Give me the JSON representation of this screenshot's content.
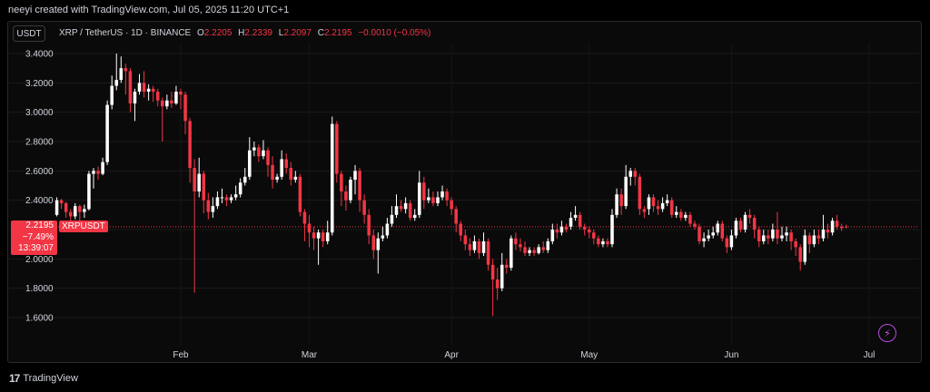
{
  "header": {
    "credit": "neeyi created with TradingView.com, Jul 05, 2025 11:20 UTC+1"
  },
  "toolbar": {
    "currency_button": "USDT"
  },
  "legend": {
    "symbol": "XRP / TetherUS · 1D · BINANCE",
    "o_label": "O",
    "o_value": "2.2205",
    "h_label": "H",
    "h_value": "2.2339",
    "l_label": "L",
    "l_value": "2.2097",
    "c_label": "C",
    "c_value": "2.2195",
    "change": "−0.0010 (−0.05%)"
  },
  "price_tag": {
    "price": "2.2195",
    "change_pct": "−7.49%",
    "countdown": "13:39:07",
    "symbol": "XRPUSDT"
  },
  "footer": {
    "logo_mark": "17",
    "brand": "TradingView"
  },
  "icons": {
    "flash": "lightning-icon"
  },
  "colors": {
    "up": "#ffffff",
    "down": "#f23645",
    "background": "#000000",
    "grid": "#1c1c1c"
  },
  "chart_data": {
    "type": "candlestick",
    "title": "",
    "xlabel": "",
    "ylabel": "",
    "ylim": [
      1.5,
      3.48
    ],
    "yticks": [
      "1.6000",
      "1.8000",
      "2.0000",
      "2.2000",
      "2.4000",
      "2.6000",
      "2.8000",
      "3.0000",
      "3.2000",
      "3.4000"
    ],
    "xticks": [
      {
        "label": "Feb",
        "date": "2025-02-01"
      },
      {
        "label": "Mar",
        "date": "2025-03-01"
      },
      {
        "label": "Apr",
        "date": "2025-04-01"
      },
      {
        "label": "May",
        "date": "2025-05-01"
      },
      {
        "label": "Jun",
        "date": "2025-06-01"
      },
      {
        "label": "Jul",
        "date": "2025-07-01"
      }
    ],
    "last_price": 2.2195,
    "start_date": "2025-01-05",
    "candles": [
      [
        2.3,
        2.4,
        2.42,
        2.29
      ],
      [
        2.4,
        2.38,
        2.41,
        2.34
      ],
      [
        2.38,
        2.32,
        2.39,
        2.28
      ],
      [
        2.32,
        2.29,
        2.34,
        2.26
      ],
      [
        2.29,
        2.36,
        2.38,
        2.27
      ],
      [
        2.36,
        2.32,
        2.37,
        2.2
      ],
      [
        2.32,
        2.34,
        2.37,
        2.28
      ],
      [
        2.34,
        2.58,
        2.6,
        2.33
      ],
      [
        2.58,
        2.6,
        2.62,
        2.48
      ],
      [
        2.6,
        2.58,
        2.63,
        2.54
      ],
      [
        2.58,
        2.66,
        2.69,
        2.57
      ],
      [
        2.66,
        3.05,
        3.08,
        2.64
      ],
      [
        3.05,
        3.18,
        3.25,
        3.02
      ],
      [
        3.18,
        3.22,
        3.4,
        3.15
      ],
      [
        3.22,
        3.3,
        3.38,
        3.2
      ],
      [
        3.3,
        3.28,
        3.33,
        3.12
      ],
      [
        3.28,
        3.06,
        3.3,
        3.0
      ],
      [
        3.06,
        3.14,
        3.16,
        2.94
      ],
      [
        3.14,
        3.2,
        3.26,
        3.12
      ],
      [
        3.2,
        3.14,
        3.28,
        3.1
      ],
      [
        3.14,
        3.16,
        3.19,
        3.08
      ],
      [
        3.16,
        3.14,
        3.18,
        3.07
      ],
      [
        3.14,
        3.08,
        3.16,
        3.04
      ],
      [
        3.08,
        3.04,
        3.1,
        2.8
      ],
      [
        3.04,
        3.08,
        3.12,
        3.02
      ],
      [
        3.08,
        3.06,
        3.14,
        3.03
      ],
      [
        3.06,
        3.14,
        3.18,
        3.05
      ],
      [
        3.14,
        3.12,
        3.16,
        3.02
      ],
      [
        3.12,
        2.94,
        3.14,
        2.85
      ],
      [
        2.94,
        2.62,
        2.96,
        2.52
      ],
      [
        2.62,
        2.46,
        2.68,
        1.77
      ],
      [
        2.46,
        2.58,
        2.69,
        2.42
      ],
      [
        2.58,
        2.4,
        2.6,
        2.31
      ],
      [
        2.4,
        2.32,
        2.45,
        2.27
      ],
      [
        2.32,
        2.36,
        2.42,
        2.28
      ],
      [
        2.36,
        2.42,
        2.46,
        2.34
      ],
      [
        2.42,
        2.42,
        2.48,
        2.38
      ],
      [
        2.42,
        2.4,
        2.44,
        2.36
      ],
      [
        2.4,
        2.42,
        2.44,
        2.38
      ],
      [
        2.42,
        2.44,
        2.5,
        2.4
      ],
      [
        2.44,
        2.52,
        2.55,
        2.42
      ],
      [
        2.52,
        2.56,
        2.62,
        2.5
      ],
      [
        2.56,
        2.74,
        2.83,
        2.54
      ],
      [
        2.74,
        2.76,
        2.8,
        2.7
      ],
      [
        2.76,
        2.7,
        2.78,
        2.66
      ],
      [
        2.7,
        2.74,
        2.81,
        2.68
      ],
      [
        2.74,
        2.64,
        2.76,
        2.56
      ],
      [
        2.64,
        2.54,
        2.7,
        2.48
      ],
      [
        2.54,
        2.56,
        2.58,
        2.52
      ],
      [
        2.56,
        2.68,
        2.74,
        2.54
      ],
      [
        2.68,
        2.62,
        2.72,
        2.58
      ],
      [
        2.62,
        2.54,
        2.66,
        2.5
      ],
      [
        2.54,
        2.56,
        2.6,
        2.52
      ],
      [
        2.56,
        2.32,
        2.58,
        2.29
      ],
      [
        2.32,
        2.24,
        2.34,
        2.12
      ],
      [
        2.24,
        2.18,
        2.3,
        2.08
      ],
      [
        2.18,
        2.14,
        2.22,
        2.06
      ],
      [
        2.14,
        2.18,
        2.2,
        1.96
      ],
      [
        2.18,
        2.12,
        2.2,
        2.08
      ],
      [
        2.12,
        2.18,
        2.26,
        2.1
      ],
      [
        2.18,
        2.92,
        2.97,
        2.16
      ],
      [
        2.92,
        2.58,
        2.94,
        2.52
      ],
      [
        2.58,
        2.46,
        2.6,
        2.36
      ],
      [
        2.46,
        2.4,
        2.5,
        2.33
      ],
      [
        2.4,
        2.54,
        2.56,
        2.38
      ],
      [
        2.54,
        2.6,
        2.64,
        2.44
      ],
      [
        2.6,
        2.4,
        2.62,
        2.32
      ],
      [
        2.4,
        2.3,
        2.44,
        2.24
      ],
      [
        2.3,
        2.16,
        2.34,
        2.1
      ],
      [
        2.16,
        2.06,
        2.2,
        2.0
      ],
      [
        2.06,
        2.14,
        2.18,
        1.9
      ],
      [
        2.14,
        2.16,
        2.22,
        2.12
      ],
      [
        2.16,
        2.24,
        2.28,
        2.14
      ],
      [
        2.24,
        2.3,
        2.36,
        2.22
      ],
      [
        2.3,
        2.36,
        2.44,
        2.28
      ],
      [
        2.36,
        2.34,
        2.4,
        2.32
      ],
      [
        2.34,
        2.38,
        2.42,
        2.31
      ],
      [
        2.38,
        2.28,
        2.4,
        2.26
      ],
      [
        2.28,
        2.3,
        2.34,
        2.26
      ],
      [
        2.3,
        2.52,
        2.6,
        2.28
      ],
      [
        2.52,
        2.4,
        2.56,
        2.34
      ],
      [
        2.4,
        2.42,
        2.48,
        2.38
      ],
      [
        2.42,
        2.38,
        2.46,
        2.36
      ],
      [
        2.38,
        2.42,
        2.46,
        2.36
      ],
      [
        2.42,
        2.46,
        2.5,
        2.4
      ],
      [
        2.46,
        2.4,
        2.48,
        2.36
      ],
      [
        2.4,
        2.34,
        2.42,
        2.3
      ],
      [
        2.34,
        2.24,
        2.36,
        2.18
      ],
      [
        2.24,
        2.16,
        2.26,
        2.12
      ],
      [
        2.16,
        2.1,
        2.2,
        2.06
      ],
      [
        2.1,
        2.06,
        2.14,
        2.02
      ],
      [
        2.06,
        2.12,
        2.16,
        2.04
      ],
      [
        2.12,
        2.04,
        2.14,
        2.0
      ],
      [
        2.04,
        2.12,
        2.18,
        2.02
      ],
      [
        2.12,
        1.96,
        2.14,
        1.92
      ],
      [
        1.96,
        1.86,
        2.0,
        1.61
      ],
      [
        1.86,
        1.8,
        1.94,
        1.72
      ],
      [
        1.8,
        1.96,
        2.04,
        1.78
      ],
      [
        1.96,
        1.94,
        2.0,
        1.9
      ],
      [
        1.94,
        2.14,
        2.16,
        1.92
      ],
      [
        2.14,
        2.1,
        2.18,
        2.06
      ],
      [
        2.1,
        2.08,
        2.14,
        2.05
      ],
      [
        2.08,
        2.04,
        2.12,
        2.02
      ],
      [
        2.04,
        2.06,
        2.08,
        2.02
      ],
      [
        2.06,
        2.04,
        2.08,
        2.02
      ],
      [
        2.04,
        2.08,
        2.1,
        2.03
      ],
      [
        2.08,
        2.06,
        2.12,
        2.04
      ],
      [
        2.06,
        2.12,
        2.14,
        2.04
      ],
      [
        2.12,
        2.2,
        2.24,
        2.1
      ],
      [
        2.2,
        2.18,
        2.24,
        2.14
      ],
      [
        2.18,
        2.22,
        2.26,
        2.16
      ],
      [
        2.22,
        2.2,
        2.24,
        2.18
      ],
      [
        2.22,
        2.28,
        2.32,
        2.2
      ],
      [
        2.28,
        2.3,
        2.36,
        2.26
      ],
      [
        2.3,
        2.22,
        2.32,
        2.2
      ],
      [
        2.22,
        2.2,
        2.24,
        2.16
      ],
      [
        2.2,
        2.18,
        2.22,
        2.14
      ],
      [
        2.18,
        2.14,
        2.2,
        2.1
      ],
      [
        2.14,
        2.1,
        2.16,
        2.08
      ],
      [
        2.1,
        2.12,
        2.14,
        2.08
      ],
      [
        2.12,
        2.1,
        2.14,
        2.08
      ],
      [
        2.1,
        2.3,
        2.34,
        2.08
      ],
      [
        2.3,
        2.44,
        2.48,
        2.28
      ],
      [
        2.44,
        2.36,
        2.48,
        2.3
      ],
      [
        2.36,
        2.56,
        2.64,
        2.34
      ],
      [
        2.56,
        2.6,
        2.62,
        2.5
      ],
      [
        2.6,
        2.56,
        2.62,
        2.5
      ],
      [
        2.56,
        2.34,
        2.58,
        2.3
      ],
      [
        2.34,
        2.32,
        2.36,
        2.28
      ],
      [
        2.34,
        2.42,
        2.44,
        2.3
      ],
      [
        2.42,
        2.36,
        2.44,
        2.32
      ],
      [
        2.36,
        2.34,
        2.4,
        2.3
      ],
      [
        2.34,
        2.38,
        2.42,
        2.32
      ],
      [
        2.38,
        2.4,
        2.44,
        2.36
      ],
      [
        2.4,
        2.3,
        2.42,
        2.28
      ],
      [
        2.3,
        2.32,
        2.36,
        2.28
      ],
      [
        2.32,
        2.28,
        2.34,
        2.26
      ],
      [
        2.28,
        2.3,
        2.32,
        2.26
      ],
      [
        2.3,
        2.24,
        2.32,
        2.22
      ],
      [
        2.24,
        2.22,
        2.26,
        2.2
      ],
      [
        2.22,
        2.12,
        2.24,
        2.1
      ],
      [
        2.12,
        2.14,
        2.18,
        2.08
      ],
      [
        2.14,
        2.16,
        2.2,
        2.12
      ],
      [
        2.16,
        2.18,
        2.22,
        2.14
      ],
      [
        2.18,
        2.24,
        2.26,
        2.16
      ],
      [
        2.24,
        2.14,
        2.26,
        2.12
      ],
      [
        2.14,
        2.08,
        2.16,
        2.04
      ],
      [
        2.08,
        2.16,
        2.2,
        2.06
      ],
      [
        2.16,
        2.26,
        2.28,
        2.14
      ],
      [
        2.26,
        2.2,
        2.28,
        2.18
      ],
      [
        2.2,
        2.3,
        2.32,
        2.18
      ],
      [
        2.3,
        2.28,
        2.34,
        2.24
      ],
      [
        2.28,
        2.2,
        2.3,
        2.14
      ],
      [
        2.2,
        2.12,
        2.22,
        2.08
      ],
      [
        2.12,
        2.16,
        2.2,
        2.1
      ],
      [
        2.16,
        2.14,
        2.2,
        2.1
      ],
      [
        2.14,
        2.2,
        2.24,
        2.12
      ],
      [
        2.2,
        2.14,
        2.32,
        2.1
      ],
      [
        2.14,
        2.16,
        2.22,
        2.12
      ],
      [
        2.16,
        2.18,
        2.22,
        2.12
      ],
      [
        2.18,
        2.12,
        2.2,
        2.06
      ],
      [
        2.12,
        2.08,
        2.14,
        2.02
      ],
      [
        2.08,
        1.98,
        2.1,
        1.92
      ],
      [
        1.98,
        2.16,
        2.2,
        1.96
      ],
      [
        2.16,
        2.1,
        2.18,
        2.04
      ],
      [
        2.1,
        2.16,
        2.2,
        2.08
      ],
      [
        2.16,
        2.14,
        2.2,
        2.1
      ],
      [
        2.14,
        2.2,
        2.3,
        2.12
      ],
      [
        2.2,
        2.18,
        2.24,
        2.14
      ],
      [
        2.18,
        2.26,
        2.28,
        2.16
      ],
      [
        2.26,
        2.22,
        2.3,
        2.2
      ],
      [
        2.22,
        2.21,
        2.24,
        2.19
      ],
      [
        2.2205,
        2.2195,
        2.2339,
        2.2097
      ]
    ]
  }
}
